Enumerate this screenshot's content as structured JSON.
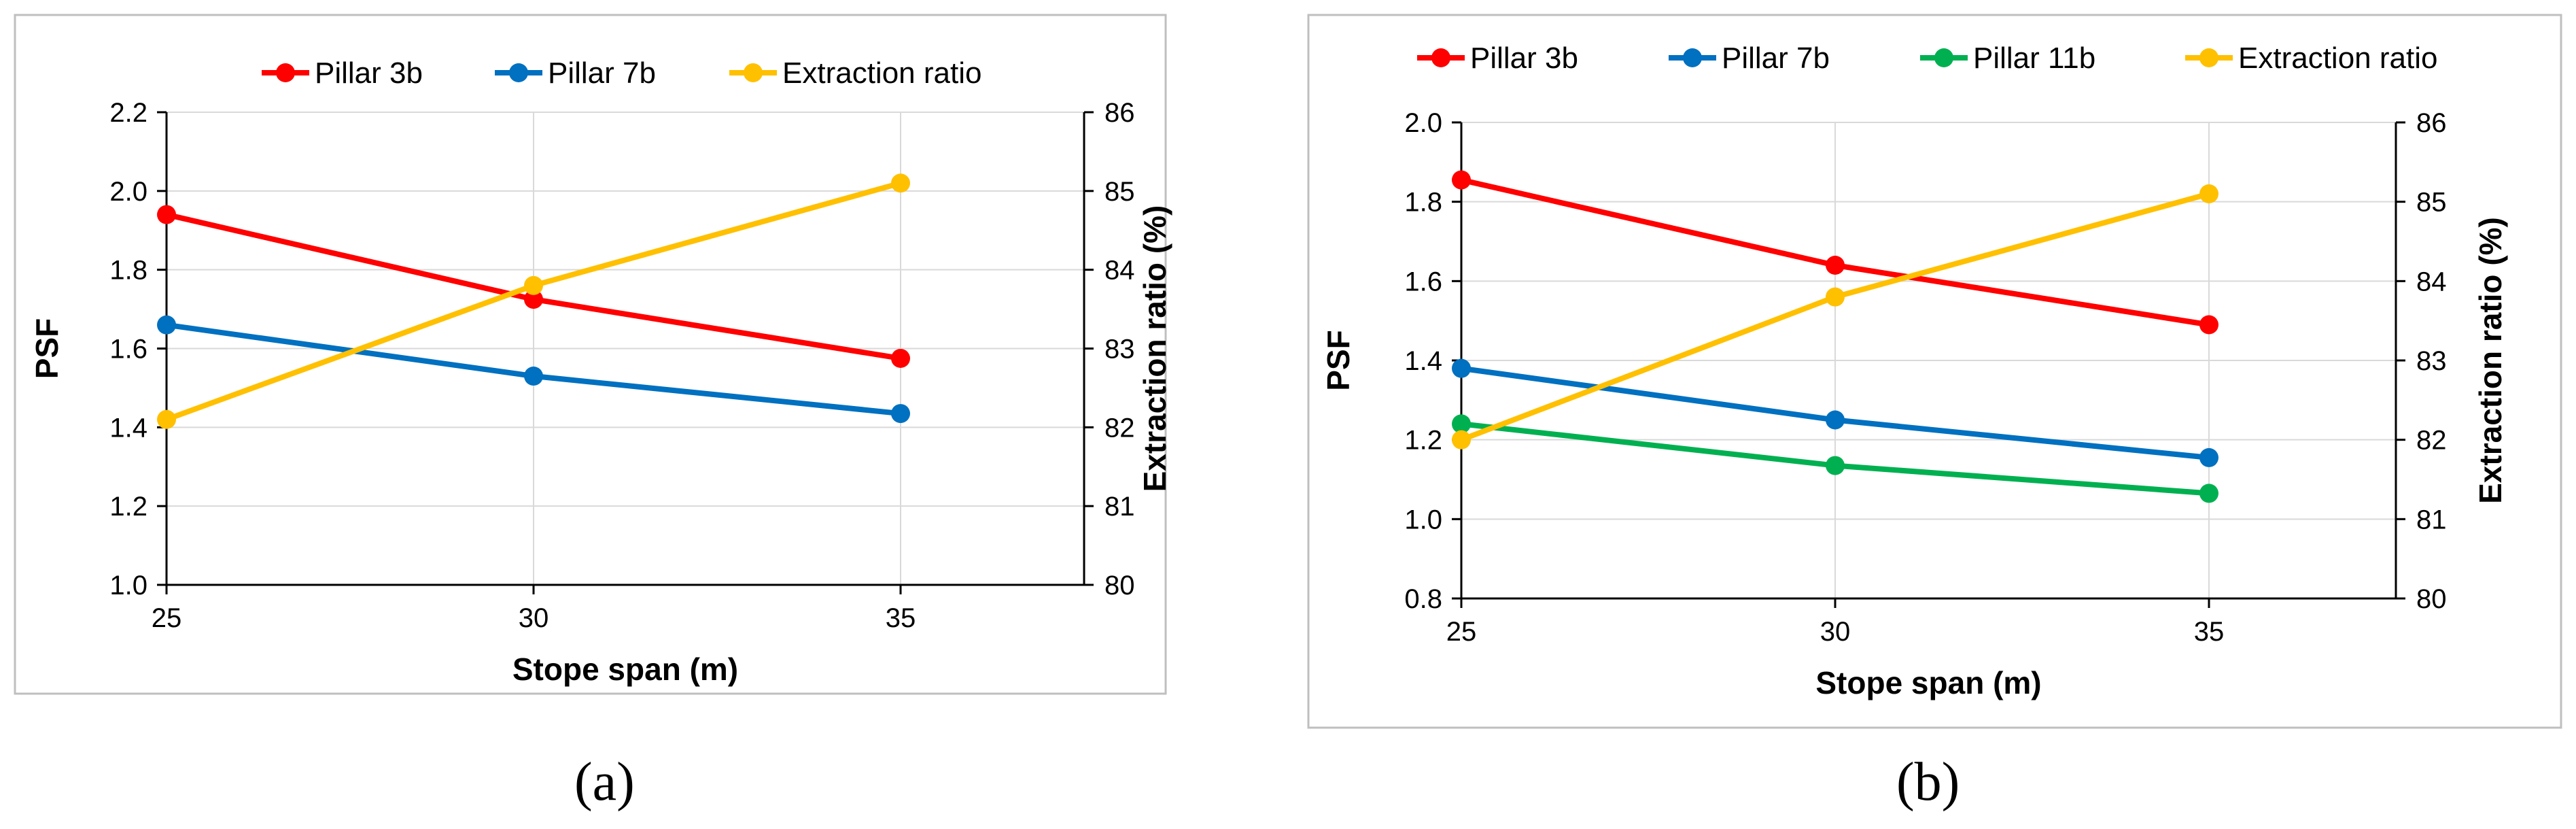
{
  "panels": [
    {
      "caption": "(a)",
      "chart_data": {
        "type": "line",
        "x": [
          25,
          30,
          35
        ],
        "xlim": [
          25,
          37.5
        ],
        "xticks": [
          "25",
          "30",
          "35"
        ],
        "xlabel": "Stope span (m)",
        "ylabel": "PSF",
        "ylim": [
          1.0,
          2.2
        ],
        "yticks": [
          "1.0",
          "1.2",
          "1.4",
          "1.6",
          "1.8",
          "2.0",
          "2.2"
        ],
        "y2label": "Extraction ratio (%)",
        "y2lim": [
          80,
          86
        ],
        "y2ticks": [
          "80",
          "81",
          "82",
          "83",
          "84",
          "85",
          "86"
        ],
        "grid": true,
        "legend_position": "top",
        "series": [
          {
            "name": "Pillar 3b",
            "color": "#ff0000",
            "axis": "left",
            "values": [
              1.94,
              1.725,
              1.575
            ]
          },
          {
            "name": "Pillar 7b",
            "color": "#0070c0",
            "axis": "left",
            "values": [
              1.66,
              1.53,
              1.435
            ]
          },
          {
            "name": "Extraction ratio",
            "color": "#ffc000",
            "axis": "right",
            "values": [
              82.1,
              83.8,
              85.1
            ]
          }
        ]
      }
    },
    {
      "caption": "(b)",
      "chart_data": {
        "type": "line",
        "x": [
          25,
          30,
          35
        ],
        "xlim": [
          25,
          37.5
        ],
        "xticks": [
          "25",
          "30",
          "35"
        ],
        "xlabel": "Stope span (m)",
        "ylabel": "PSF",
        "ylim": [
          0.8,
          2.0
        ],
        "yticks": [
          "0.8",
          "1.0",
          "1.2",
          "1.4",
          "1.6",
          "1.8",
          "2.0"
        ],
        "y2label": "Extraction ratio (%)",
        "y2lim": [
          80,
          86
        ],
        "y2ticks": [
          "80",
          "81",
          "82",
          "83",
          "84",
          "85",
          "86"
        ],
        "grid": true,
        "legend_position": "top",
        "series": [
          {
            "name": "Pillar 3b",
            "color": "#ff0000",
            "axis": "left",
            "values": [
              1.855,
              1.64,
              1.49
            ]
          },
          {
            "name": "Pillar 7b",
            "color": "#0070c0",
            "axis": "left",
            "values": [
              1.38,
              1.25,
              1.155
            ]
          },
          {
            "name": "Pillar 11b",
            "color": "#00b050",
            "axis": "left",
            "values": [
              1.24,
              1.135,
              1.065
            ]
          },
          {
            "name": "Extraction ratio",
            "color": "#ffc000",
            "axis": "right",
            "values": [
              82.0,
              83.8,
              85.1
            ]
          }
        ]
      }
    }
  ]
}
